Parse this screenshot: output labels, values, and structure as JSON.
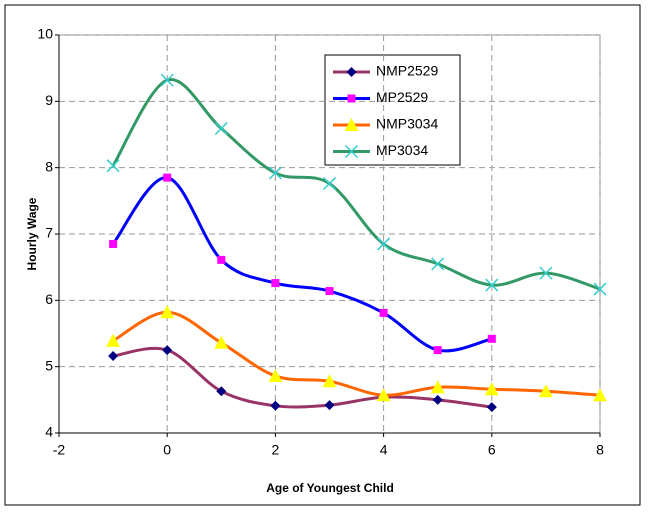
{
  "chart_data": {
    "type": "line",
    "smooth": true,
    "x_label": "Age of Youngest Child",
    "y_label": "Hourly Wage",
    "xlim": [
      -2,
      8
    ],
    "xticks": [
      -2,
      0,
      2,
      4,
      6,
      8
    ],
    "ylim": [
      4,
      10
    ],
    "yticks": [
      4,
      5,
      6,
      7,
      8,
      9,
      10
    ],
    "grid": true,
    "legend": "top-right",
    "series": [
      {
        "name": "NMP2529",
        "color": "#993366",
        "marker": "diamond",
        "marker_color": "#000080",
        "x": [
          -1,
          0,
          1,
          2,
          3,
          4,
          5,
          6
        ],
        "values": [
          5.16,
          5.25,
          4.63,
          4.41,
          4.42,
          4.54,
          4.5,
          4.39
        ]
      },
      {
        "name": "MP2529",
        "color": "#0000ff",
        "marker": "square",
        "marker_color": "#ff00ff",
        "x": [
          -1,
          0,
          1,
          2,
          3,
          4,
          5,
          6
        ],
        "values": [
          6.85,
          7.85,
          6.61,
          6.26,
          6.14,
          5.81,
          5.25,
          5.42
        ]
      },
      {
        "name": "NMP3034",
        "color": "#ff6600",
        "marker": "triangle",
        "marker_color": "#ffff00",
        "x": [
          -1,
          0,
          1,
          2,
          3,
          4,
          5,
          6,
          7,
          8
        ],
        "values": [
          5.39,
          5.82,
          5.36,
          4.86,
          4.78,
          4.57,
          4.69,
          4.66,
          4.63,
          4.57
        ]
      },
      {
        "name": "MP3034",
        "color": "#339966",
        "marker": "cross",
        "marker_color": "#33cccc",
        "x": [
          -1,
          0,
          1,
          2,
          3,
          4,
          5,
          6,
          7,
          8
        ],
        "values": [
          8.03,
          9.32,
          8.59,
          7.92,
          7.76,
          6.85,
          6.55,
          6.23,
          6.41,
          6.17
        ]
      }
    ]
  }
}
